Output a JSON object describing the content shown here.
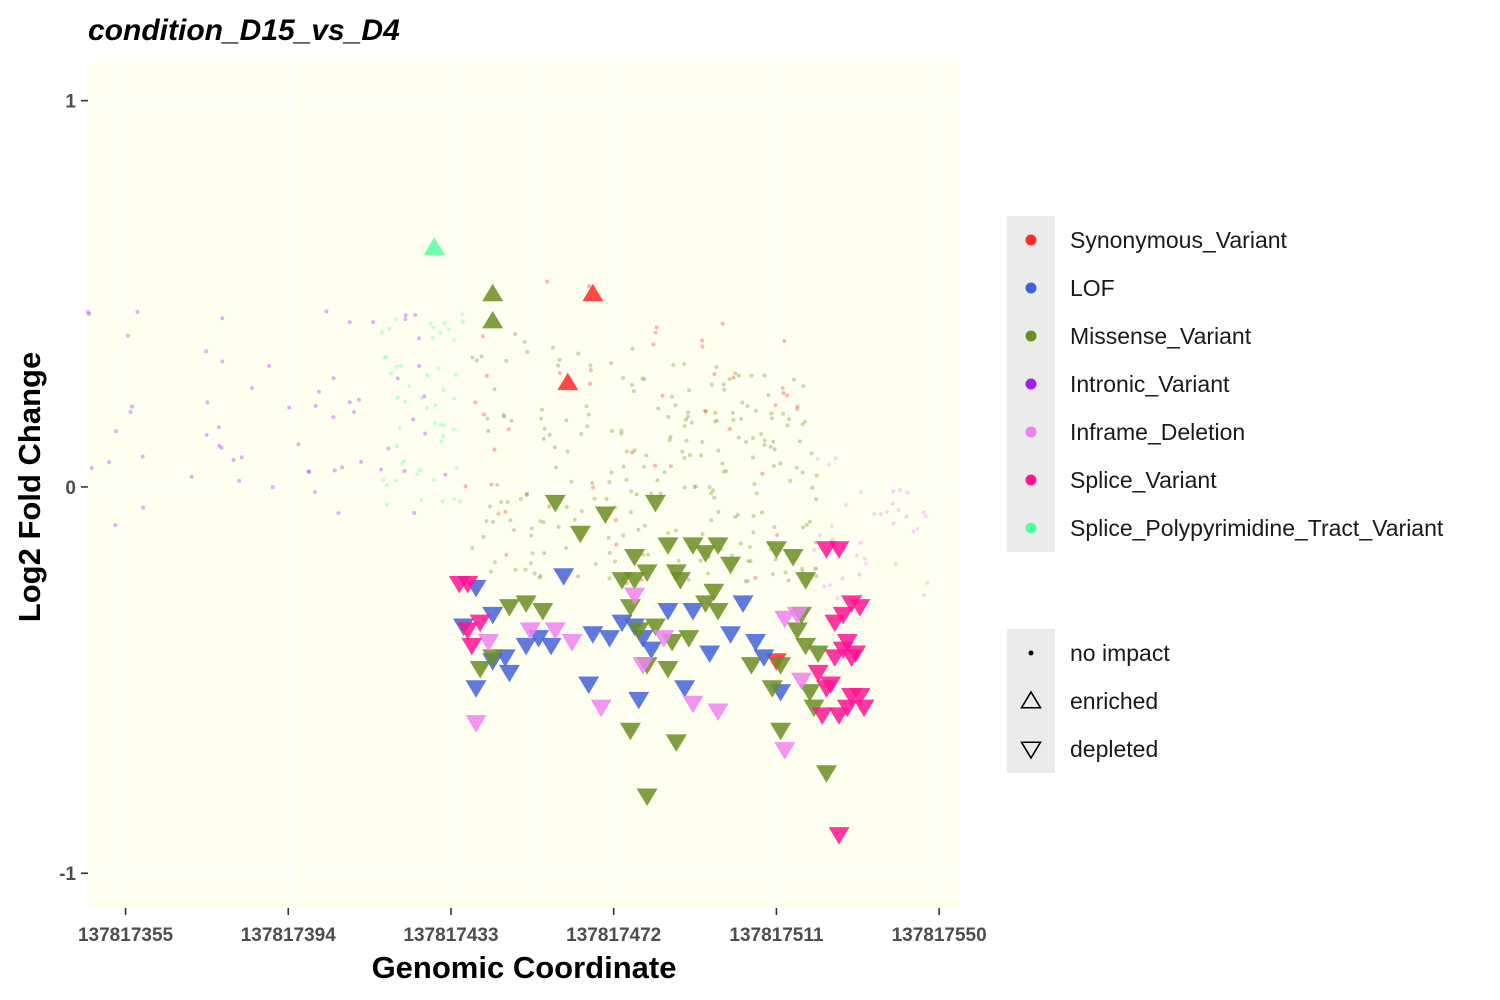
{
  "chart_data": {
    "type": "scatter",
    "title": "condition_D15_vs_D4",
    "xlabel": "Genomic Coordinate",
    "ylabel": "Log2 Fold Change",
    "xlim": [
      137817346,
      137817555
    ],
    "ylim": [
      -1.09,
      1.1
    ],
    "x_ticks": [
      137817355,
      137817394,
      137817433,
      137817472,
      137817511,
      137817550
    ],
    "x_tick_labels": [
      "137817355",
      "137817394",
      "137817433",
      "137817472",
      "137817511",
      "137817550"
    ],
    "y_ticks": [
      1,
      0,
      -1
    ],
    "y_tick_labels": [
      "1",
      "0",
      "-1"
    ],
    "grid": true,
    "panel_background": "#fffff0",
    "legend_position": "right",
    "legend_color": [
      {
        "label": "Synonymous_Variant",
        "color": "#ff2a2a"
      },
      {
        "label": "LOF",
        "color": "#4363d8"
      },
      {
        "label": "Missense_Variant",
        "color": "#6b8e23"
      },
      {
        "label": "Intronic_Variant",
        "color": "#a020f0"
      },
      {
        "label": "Inframe_Deletion",
        "color": "#ee82ee"
      },
      {
        "label": "Splice_Variant",
        "color": "#ff1493"
      },
      {
        "label": "Splice_Polypyrimidine_Tract_Variant",
        "color": "#54ff9f"
      }
    ],
    "legend_shape": [
      {
        "label": "no impact",
        "shape": "dot"
      },
      {
        "label": "enriched",
        "shape": "triangle-up"
      },
      {
        "label": "depleted",
        "shape": "triangle-down"
      }
    ],
    "series": [
      {
        "name": "Synonymous_Variant",
        "color": "#ff2a2a",
        "enriched": [
          [
            137817467,
            0.5
          ],
          [
            137817461,
            0.27
          ]
        ],
        "depleted": [
          [
            137817511,
            -0.45
          ]
        ]
      },
      {
        "name": "LOF",
        "color": "#4363d8",
        "depleted": [
          [
            137817439,
            -0.26
          ],
          [
            137817443,
            -0.33
          ],
          [
            137817436,
            -0.36
          ],
          [
            137817439,
            -0.52
          ],
          [
            137817443,
            -0.45
          ],
          [
            137817446,
            -0.44
          ],
          [
            137817447,
            -0.48
          ],
          [
            137817451,
            -0.41
          ],
          [
            137817454,
            -0.39
          ],
          [
            137817457,
            -0.41
          ],
          [
            137817460,
            -0.23
          ],
          [
            137817467,
            -0.38
          ],
          [
            137817466,
            -0.51
          ],
          [
            137817471,
            -0.39
          ],
          [
            137817478,
            -0.55
          ],
          [
            137817474,
            -0.35
          ],
          [
            137817481,
            -0.42
          ],
          [
            137817485,
            -0.32
          ],
          [
            137817489,
            -0.52
          ],
          [
            137817491,
            -0.32
          ],
          [
            137817495,
            -0.43
          ],
          [
            137817500,
            -0.38
          ],
          [
            137817503,
            -0.3
          ],
          [
            137817506,
            -0.4
          ],
          [
            137817508,
            -0.44
          ],
          [
            137817512,
            -0.53
          ],
          [
            137817477,
            -0.36
          ],
          [
            137817479,
            -0.39
          ]
        ]
      },
      {
        "name": "Missense_Variant",
        "color": "#6b8e23",
        "enriched": [
          [
            137817443,
            0.5
          ],
          [
            137817443,
            0.43
          ]
        ],
        "depleted": [
          [
            137817458,
            -0.04
          ],
          [
            137817464,
            -0.12
          ],
          [
            137817470,
            -0.07
          ],
          [
            137817477,
            -0.18
          ],
          [
            137817480,
            -0.22
          ],
          [
            137817482,
            -0.04
          ],
          [
            137817485,
            -0.15
          ],
          [
            137817487,
            -0.22
          ],
          [
            137817491,
            -0.15
          ],
          [
            137817494,
            -0.17
          ],
          [
            137817497,
            -0.15
          ],
          [
            137817500,
            -0.2
          ],
          [
            137817511,
            -0.16
          ],
          [
            137817515,
            -0.18
          ],
          [
            137817518,
            -0.24
          ],
          [
            137817474,
            -0.24
          ],
          [
            137817476,
            -0.31
          ],
          [
            137817478,
            -0.37
          ],
          [
            137817482,
            -0.36
          ],
          [
            137817486,
            -0.4
          ],
          [
            137817490,
            -0.39
          ],
          [
            137817443,
            -0.44
          ],
          [
            137817447,
            -0.31
          ],
          [
            137817451,
            -0.3
          ],
          [
            137817455,
            -0.32
          ],
          [
            137817440,
            -0.47
          ],
          [
            137817476,
            -0.63
          ],
          [
            137817480,
            -0.46
          ],
          [
            137817485,
            -0.47
          ],
          [
            137817494,
            -0.3
          ],
          [
            137817497,
            -0.32
          ],
          [
            137817505,
            -0.46
          ],
          [
            137817510,
            -0.52
          ],
          [
            137817512,
            -0.63
          ],
          [
            137817516,
            -0.37
          ],
          [
            137817518,
            -0.41
          ],
          [
            137817519,
            -0.53
          ],
          [
            137817520,
            -0.57
          ],
          [
            137817521,
            -0.43
          ],
          [
            137817523,
            -0.74
          ],
          [
            137817487,
            -0.66
          ],
          [
            137817480,
            -0.8
          ],
          [
            137817477,
            -0.24
          ],
          [
            137817488,
            -0.24
          ],
          [
            137817496,
            -0.27
          ],
          [
            137817512,
            -0.46
          ],
          [
            137817517,
            -0.33
          ]
        ]
      },
      {
        "name": "Intronic_Variant",
        "color": "#a020f0",
        "depleted": []
      },
      {
        "name": "Inframe_Deletion",
        "color": "#ee82ee",
        "depleted": [
          [
            137817439,
            -0.61
          ],
          [
            137817442,
            -0.4
          ],
          [
            137817452,
            -0.37
          ],
          [
            137817462,
            -0.4
          ],
          [
            137817469,
            -0.57
          ],
          [
            137817477,
            -0.28
          ],
          [
            137817479,
            -0.46
          ],
          [
            137817484,
            -0.39
          ],
          [
            137817491,
            -0.56
          ],
          [
            137817497,
            -0.58
          ],
          [
            137817513,
            -0.68
          ],
          [
            137817517,
            -0.5
          ],
          [
            137817516,
            -0.33
          ],
          [
            137817513,
            -0.34
          ],
          [
            137817458,
            -0.37
          ]
        ]
      },
      {
        "name": "Splice_Variant",
        "color": "#ff1493",
        "depleted": [
          [
            137817435,
            -0.25
          ],
          [
            137817437,
            -0.25
          ],
          [
            137817437,
            -0.37
          ],
          [
            137817438,
            -0.41
          ],
          [
            137817440,
            -0.35
          ],
          [
            137817523,
            -0.16
          ],
          [
            137817526,
            -0.16
          ],
          [
            137817521,
            -0.48
          ],
          [
            137817523,
            -0.52
          ],
          [
            137817524,
            -0.51
          ],
          [
            137817525,
            -0.44
          ],
          [
            137817527,
            -0.42
          ],
          [
            137817529,
            -0.44
          ],
          [
            137817529,
            -0.54
          ],
          [
            137817531,
            -0.54
          ],
          [
            137817532,
            -0.57
          ],
          [
            137817525,
            -0.35
          ],
          [
            137817527,
            -0.33
          ],
          [
            137817529,
            -0.3
          ],
          [
            137817531,
            -0.31
          ],
          [
            137817528,
            -0.4
          ],
          [
            137817530,
            -0.43
          ],
          [
            137817522,
            -0.59
          ],
          [
            137817526,
            -0.59
          ],
          [
            137817528,
            -0.57
          ],
          [
            137817526,
            -0.9
          ]
        ]
      },
      {
        "name": "Splice_Polypyrimidine_Tract_Variant",
        "color": "#54ff9f",
        "enriched": [
          [
            137817429,
            0.62
          ]
        ],
        "depleted": []
      }
    ]
  }
}
